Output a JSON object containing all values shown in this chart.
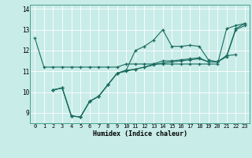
{
  "title": "",
  "xlabel": "Humidex (Indice chaleur)",
  "bg_color": "#c8ece8",
  "line_color": "#1a6b5e",
  "grid_color": "#ffffff",
  "xlim": [
    -0.5,
    23.5
  ],
  "ylim": [
    8.5,
    14.2
  ],
  "yticks": [
    9,
    10,
    11,
    12,
    13,
    14
  ],
  "xtick_labels": [
    "0",
    "1",
    "2",
    "3",
    "4",
    "5",
    "6",
    "7",
    "8",
    "9",
    "10",
    "11",
    "12",
    "13",
    "14",
    "15",
    "16",
    "17",
    "18",
    "19",
    "20",
    "21",
    "22",
    "23"
  ],
  "series": [
    [
      12.6,
      11.2,
      11.2,
      11.2,
      11.2,
      11.2,
      11.2,
      11.2,
      11.2,
      11.2,
      11.35,
      11.35,
      11.35,
      11.35,
      11.35,
      11.35,
      11.35,
      11.35,
      11.35,
      11.35,
      11.35,
      13.05,
      13.2,
      13.3
    ],
    [
      null,
      null,
      10.1,
      10.2,
      8.85,
      8.8,
      9.55,
      9.8,
      10.35,
      10.9,
      11.05,
      12.0,
      12.2,
      12.5,
      13.0,
      12.2,
      12.2,
      12.25,
      12.2,
      11.55,
      11.45,
      11.75,
      11.8,
      null
    ],
    [
      null,
      null,
      10.1,
      10.2,
      8.85,
      8.8,
      9.55,
      9.8,
      10.35,
      10.9,
      11.05,
      11.1,
      11.2,
      11.35,
      11.5,
      11.5,
      11.55,
      11.6,
      11.65,
      11.45,
      11.45,
      11.75,
      13.05,
      13.3
    ],
    [
      null,
      null,
      10.1,
      10.2,
      8.85,
      8.8,
      9.55,
      9.8,
      10.35,
      10.9,
      11.0,
      11.1,
      11.2,
      11.3,
      11.4,
      11.45,
      11.5,
      11.55,
      11.6,
      11.45,
      11.45,
      11.7,
      13.0,
      13.2
    ]
  ]
}
